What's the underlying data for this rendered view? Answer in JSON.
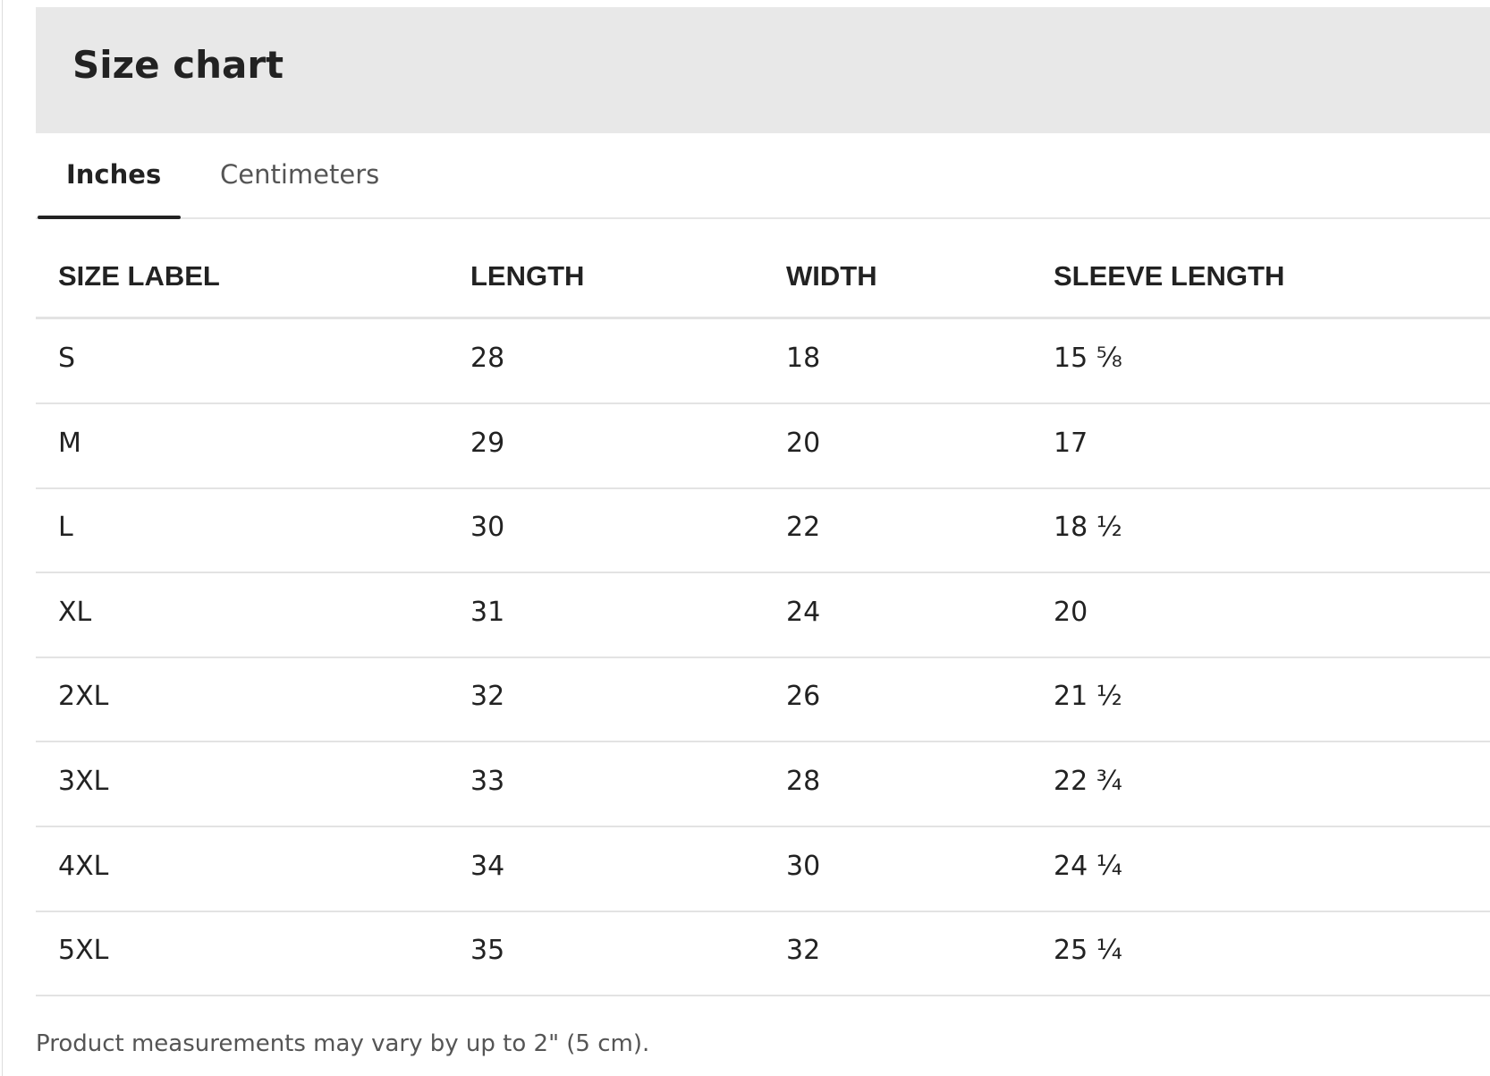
{
  "header": {
    "title": "Size chart"
  },
  "tabs": [
    "Inches",
    "Centimeters"
  ],
  "table": {
    "columns": [
      "SIZE LABEL",
      "LENGTH",
      "WIDTH",
      "SLEEVE LENGTH"
    ],
    "rows": [
      [
        "S",
        "28",
        "18",
        "15 ⅝"
      ],
      [
        "M",
        "29",
        "20",
        "17"
      ],
      [
        "L",
        "30",
        "22",
        "18 ½"
      ],
      [
        "XL",
        "31",
        "24",
        "20"
      ],
      [
        "2XL",
        "32",
        "26",
        "21 ½"
      ],
      [
        "3XL",
        "33",
        "28",
        "22 ¾"
      ],
      [
        "4XL",
        "34",
        "30",
        "24 ¼"
      ],
      [
        "5XL",
        "35",
        "32",
        "25 ¼"
      ]
    ]
  },
  "footnote": "Product measurements may vary by up to 2\" (5 cm)."
}
